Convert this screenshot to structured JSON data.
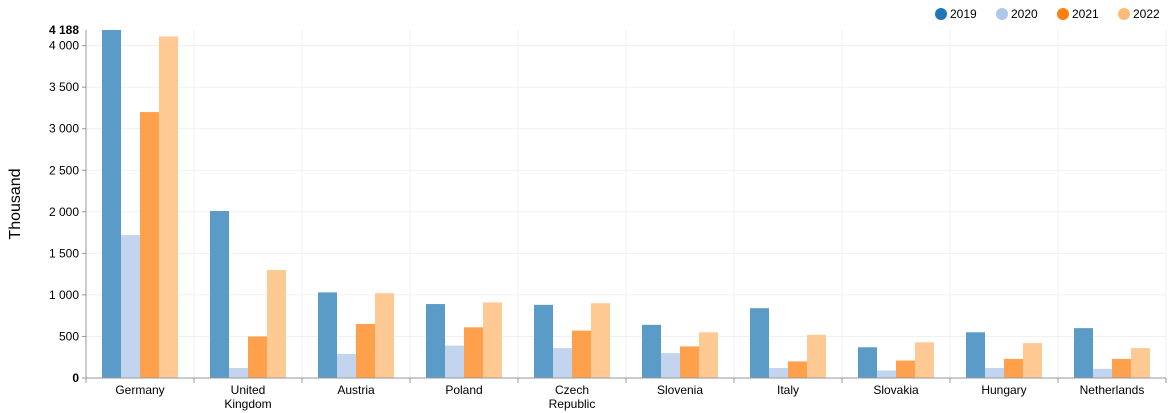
{
  "chart_data": {
    "type": "bar",
    "ylabel": "Thousand",
    "ylim": [
      0,
      4188
    ],
    "yticks": [
      0,
      500,
      1000,
      1500,
      2000,
      2500,
      3000,
      3500,
      4000
    ],
    "ytick_labels": [
      "0",
      "500",
      "1 000",
      "1 500",
      "2 000",
      "2 500",
      "3 000",
      "3 500",
      "4 000"
    ],
    "ymax_label": "4 188",
    "legend_position": "top-right",
    "grid": true,
    "categories": [
      [
        "Germany"
      ],
      [
        "United",
        "Kingdom"
      ],
      [
        "Austria"
      ],
      [
        "Poland"
      ],
      [
        "Czech",
        "Republic"
      ],
      [
        "Slovenia"
      ],
      [
        "Italy"
      ],
      [
        "Slovakia"
      ],
      [
        "Hungary"
      ],
      [
        "Netherlands"
      ]
    ],
    "series": [
      {
        "name": "2019",
        "color": "#5b9bc8",
        "legend_color": "#1f77b4",
        "values": [
          4188,
          2010,
          1030,
          890,
          880,
          640,
          840,
          370,
          550,
          600
        ]
      },
      {
        "name": "2020",
        "color": "#c3d5ee",
        "legend_color": "#aec7e8",
        "values": [
          1720,
          120,
          290,
          390,
          360,
          300,
          120,
          90,
          120,
          110
        ]
      },
      {
        "name": "2021",
        "color": "#ffa04d",
        "legend_color": "#ff7f0e",
        "values": [
          3200,
          500,
          650,
          610,
          570,
          380,
          200,
          210,
          230,
          230
        ]
      },
      {
        "name": "2022",
        "color": "#ffc994",
        "legend_color": "#ffbb78",
        "values": [
          4110,
          1300,
          1020,
          910,
          900,
          550,
          520,
          430,
          420,
          360
        ]
      }
    ]
  }
}
